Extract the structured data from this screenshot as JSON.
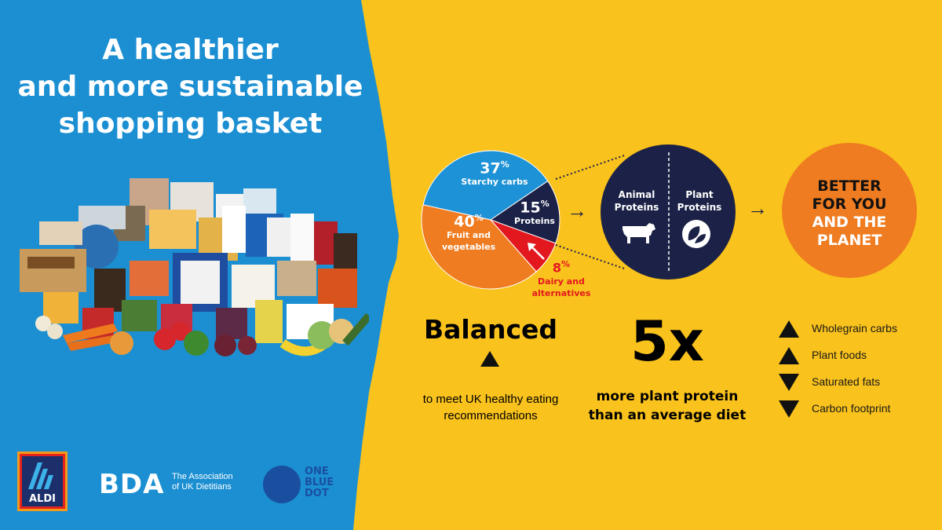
{
  "title": {
    "line1": "A healthier",
    "line2": "and more sustainable",
    "line3": "shopping basket"
  },
  "pie": {
    "slices": [
      {
        "pct": "37",
        "label": "Starchy carbs",
        "color": "#1e92d6"
      },
      {
        "pct": "15",
        "label": "Proteins",
        "color": "#1c2247"
      },
      {
        "pct": "8",
        "label_line1": "Dairy and",
        "label_line2": "alternatives",
        "color": "#e3181f"
      },
      {
        "pct": "40",
        "label_line1": "Fruit and",
        "label_line2": "vegetables",
        "color": "#ef7c20"
      }
    ],
    "percent_sign": "%"
  },
  "proteins": {
    "animal_line1": "Animal",
    "animal_line2": "Proteins",
    "plant_line1": "Plant",
    "plant_line2": "Proteins",
    "animal_icon": "cow-icon",
    "plant_icon": "leaves-icon"
  },
  "better": {
    "line1": "BETTER",
    "line2": "FOR YOU",
    "line3": "AND THE",
    "line4": "PLANET"
  },
  "balanced": {
    "heading": "Balanced",
    "desc_line1": "to meet UK healthy eating",
    "desc_line2": "recommendations"
  },
  "five_x": {
    "heading": "5x",
    "desc_line1": "more plant protein",
    "desc_line2": "than an average diet"
  },
  "changes": [
    {
      "direction": "up",
      "label": "Wholegrain carbs"
    },
    {
      "direction": "up",
      "label": "Plant foods"
    },
    {
      "direction": "down",
      "label": "Saturated fats"
    },
    {
      "direction": "down",
      "label": "Carbon footprint"
    }
  ],
  "logos": {
    "aldi": "ALDI",
    "bda": "BDA",
    "bda_line1": "The Association",
    "bda_line2": "of UK Dietitians",
    "obd_line1": "ONE",
    "obd_line2": "BLUE",
    "obd_line3": "DOT"
  },
  "colors": {
    "blue": "#1b8fd2",
    "yellow": "#f9c21c",
    "navy": "#1c2247",
    "orange": "#ef7c20",
    "red": "#e3181f"
  }
}
